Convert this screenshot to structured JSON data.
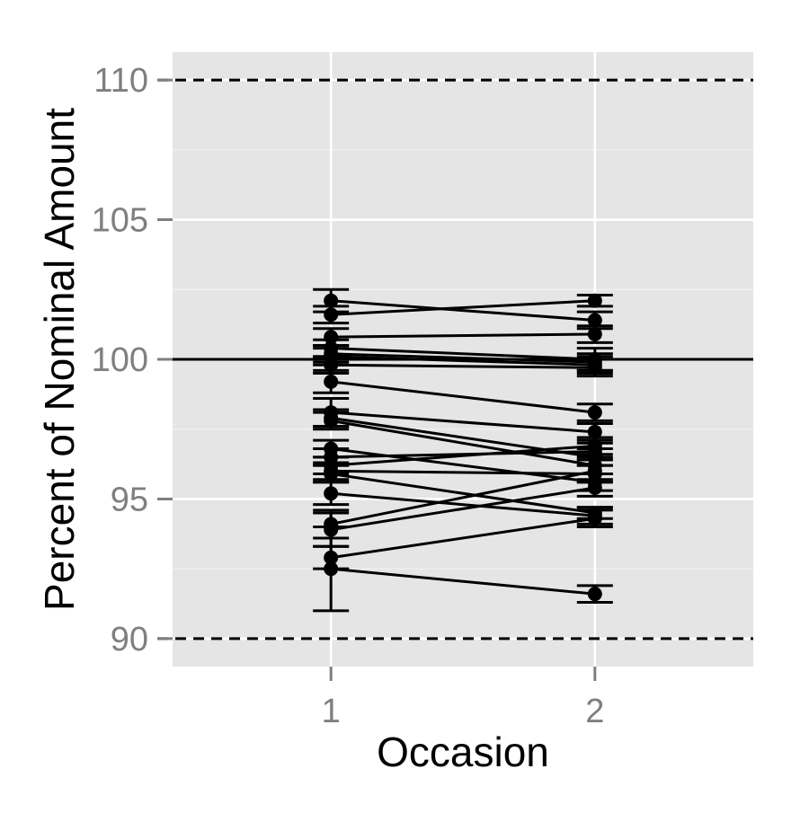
{
  "chart_data": {
    "type": "line",
    "title": "",
    "xlabel": "Occasion",
    "ylabel": "Percent of Nominal Amount",
    "x_categories": [
      "1",
      "2"
    ],
    "xlim": [
      0.4,
      2.6
    ],
    "ylim": [
      89,
      111
    ],
    "y_ticks": [
      90,
      95,
      100,
      105,
      110
    ],
    "y_tick_labels": [
      "90",
      "95",
      "100",
      "105",
      "110"
    ],
    "grid": true,
    "background": "#e5e5e5",
    "grid_color": "#ffffff",
    "mark_color": "#000000",
    "tick_label_color": "#7f7f7f",
    "reference_lines": [
      {
        "y": 100,
        "style": "solid"
      },
      {
        "y": 90,
        "style": "dashed"
      },
      {
        "y": 110,
        "style": "dashed"
      }
    ],
    "series": [
      {
        "values": [
          102.1,
          101.4
        ],
        "errors": [
          0.4,
          0.3
        ]
      },
      {
        "values": [
          101.6,
          102.1
        ],
        "errors": [
          0.3,
          0.2
        ]
      },
      {
        "values": [
          100.8,
          100.9
        ],
        "errors": [
          0.3,
          0.3
        ]
      },
      {
        "values": [
          100.4,
          100.0
        ],
        "errors": [
          0.3,
          0.4
        ]
      },
      {
        "values": [
          100.2,
          99.9
        ],
        "errors": [
          0.3,
          0.3
        ]
      },
      {
        "values": [
          100.1,
          99.8
        ],
        "errors": [
          0.3,
          0.3
        ]
      },
      {
        "values": [
          99.8,
          99.7
        ],
        "errors": [
          0.3,
          0.3
        ]
      },
      {
        "values": [
          99.2,
          98.1
        ],
        "errors": [
          0.4,
          0.3
        ]
      },
      {
        "values": [
          98.1,
          97.4
        ],
        "errors": [
          0.5,
          0.3
        ]
      },
      {
        "values": [
          97.9,
          96.5
        ],
        "errors": [
          0.3,
          0.3
        ]
      },
      {
        "values": [
          97.8,
          96.2
        ],
        "errors": [
          0.3,
          0.3
        ]
      },
      {
        "values": [
          96.8,
          95.6
        ],
        "errors": [
          0.3,
          0.3
        ]
      },
      {
        "values": [
          96.5,
          96.7
        ],
        "errors": [
          0.3,
          0.3
        ]
      },
      {
        "values": [
          96.2,
          96.9
        ],
        "errors": [
          0.3,
          0.3
        ]
      },
      {
        "values": [
          96.0,
          95.9
        ],
        "errors": [
          0.3,
          0.3
        ]
      },
      {
        "values": [
          95.9,
          94.5
        ],
        "errors": [
          0.3,
          0.2
        ]
      },
      {
        "values": [
          95.2,
          94.4
        ],
        "errors": [
          0.4,
          0.3
        ]
      },
      {
        "values": [
          94.1,
          96.0
        ],
        "errors": [
          0.5,
          0.4
        ]
      },
      {
        "values": [
          93.9,
          95.4
        ],
        "errors": [
          0.6,
          0.3
        ]
      },
      {
        "values": [
          92.9,
          94.3
        ],
        "errors": [
          0.4,
          0.3
        ]
      },
      {
        "values": [
          92.5,
          91.6
        ],
        "errors": [
          1.5,
          0.3
        ]
      }
    ]
  }
}
